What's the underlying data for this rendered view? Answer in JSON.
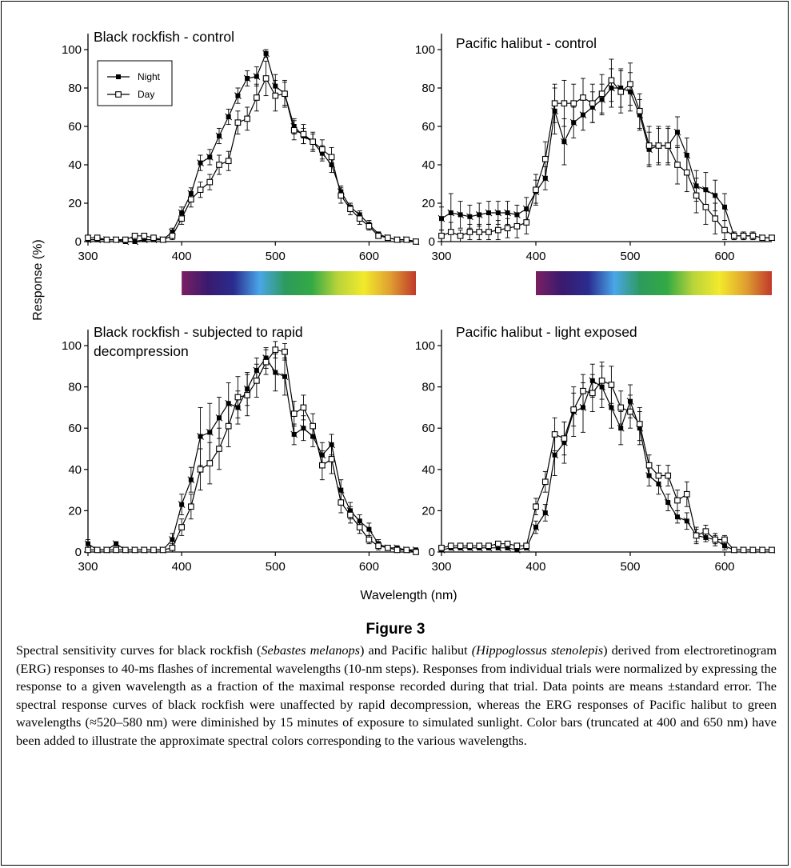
{
  "figure": {
    "title": "Figure 3",
    "ylabel": "Response (%)",
    "xlabel": "Wavelength (nm)"
  },
  "caption": {
    "t1": "Spectral sensitivity curves for black rockfish (",
    "sp1": "Sebastes melanops",
    "t2": ") and Pacific halibut ",
    "sp2": "(Hippoglossus stenolepis",
    "t3": ") derived from electroretinogram (ERG) responses to 40-ms flashes of incremental wavelengths (10-nm steps). Responses from individual trials were normalized by expressing the response to a given wavelength as a fraction of the maximal response recorded during that trial. Data points are means ±standard error. The spectral response curves of black rockfish were unaffected by rapid decompression, whereas the ERG responses of Pacific halibut to green wavelengths (≈520–580 nm) were diminished by 15 minutes of exposure to simulated sunlight. Color bars (truncated at 400 and 650 nm) have been added to illustrate the approximate spectral colors corresponding to the various wavelengths."
  },
  "legend": [
    "Night",
    "Day"
  ],
  "colors": {
    "spectrum": [
      "#7a1f63",
      "#3a1a6e",
      "#2a2c8f",
      "#4aa6e8",
      "#2d9a5c",
      "#33aa44",
      "#b9d43a",
      "#f2ea2c",
      "#e0a030",
      "#c0392b"
    ]
  },
  "chart_data": [
    {
      "type": "line",
      "title": "Black rockfish - control",
      "xlim": [
        300,
        650
      ],
      "ylim": [
        0,
        100
      ],
      "xticks": [
        300,
        400,
        500,
        600
      ],
      "yticks": [
        0,
        20,
        40,
        60,
        80,
        100
      ],
      "x": [
        300,
        310,
        320,
        330,
        340,
        350,
        360,
        370,
        380,
        390,
        400,
        410,
        420,
        430,
        440,
        450,
        460,
        470,
        480,
        490,
        500,
        510,
        520,
        530,
        540,
        550,
        560,
        570,
        580,
        590,
        600,
        610,
        620,
        630,
        640,
        650
      ],
      "series": [
        {
          "name": "Night",
          "values": [
            1,
            1,
            1,
            1,
            0,
            0,
            1,
            1,
            1,
            5,
            15,
            25,
            41,
            44,
            55,
            65,
            76,
            85,
            86,
            98,
            81,
            77,
            60,
            55,
            52,
            46,
            40,
            26,
            18,
            14,
            9,
            4,
            2,
            1,
            1,
            0
          ],
          "err": [
            1,
            1,
            1,
            1,
            1,
            1,
            1,
            1,
            1,
            2,
            3,
            3,
            4,
            4,
            4,
            4,
            4,
            4,
            5,
            2,
            6,
            6,
            4,
            4,
            4,
            4,
            4,
            3,
            2,
            2,
            2,
            1,
            1,
            1,
            1,
            1
          ]
        },
        {
          "name": "Day",
          "values": [
            2,
            2,
            1,
            1,
            1,
            3,
            3,
            2,
            1,
            3,
            12,
            22,
            27,
            31,
            40,
            42,
            62,
            64,
            75,
            85,
            76,
            77,
            58,
            56,
            52,
            48,
            44,
            24,
            17,
            12,
            8,
            3,
            2,
            1,
            1,
            0
          ],
          "err": [
            1,
            1,
            1,
            1,
            1,
            1,
            1,
            1,
            1,
            2,
            3,
            4,
            4,
            4,
            5,
            5,
            6,
            6,
            7,
            9,
            8,
            7,
            5,
            5,
            5,
            5,
            5,
            4,
            3,
            3,
            2,
            1,
            1,
            1,
            1,
            1
          ]
        }
      ]
    },
    {
      "type": "line",
      "title": "Pacific halibut - control",
      "xlim": [
        300,
        650
      ],
      "ylim": [
        0,
        100
      ],
      "xticks": [
        300,
        400,
        500,
        600
      ],
      "yticks": [
        0,
        20,
        40,
        60,
        80,
        100
      ],
      "x": [
        300,
        310,
        320,
        330,
        340,
        350,
        360,
        370,
        380,
        390,
        400,
        410,
        420,
        430,
        440,
        450,
        460,
        470,
        480,
        490,
        500,
        510,
        520,
        530,
        540,
        550,
        560,
        570,
        580,
        590,
        600,
        610,
        620,
        630,
        640,
        650
      ],
      "series": [
        {
          "name": "Night",
          "values": [
            12,
            15,
            14,
            13,
            14,
            15,
            15,
            15,
            14,
            17,
            26,
            33,
            68,
            52,
            62,
            66,
            70,
            74,
            80,
            80,
            78,
            66,
            48,
            50,
            50,
            57,
            45,
            29,
            27,
            24,
            18,
            3,
            3,
            3,
            2,
            2
          ],
          "err": [
            6,
            10,
            7,
            6,
            6,
            6,
            6,
            6,
            5,
            6,
            6,
            6,
            12,
            12,
            8,
            8,
            8,
            8,
            10,
            10,
            10,
            8,
            9,
            9,
            9,
            8,
            9,
            8,
            9,
            8,
            7,
            2,
            2,
            2,
            1,
            1
          ]
        },
        {
          "name": "Day",
          "values": [
            3,
            5,
            3,
            5,
            5,
            5,
            6,
            7,
            8,
            10,
            27,
            43,
            72,
            72,
            72,
            75,
            72,
            77,
            84,
            78,
            82,
            68,
            50,
            50,
            50,
            40,
            36,
            24,
            18,
            12,
            6,
            3,
            3,
            3,
            2,
            2
          ],
          "err": [
            3,
            5,
            3,
            4,
            4,
            4,
            5,
            5,
            6,
            6,
            8,
            9,
            10,
            12,
            10,
            10,
            10,
            10,
            11,
            11,
            11,
            9,
            10,
            10,
            10,
            10,
            10,
            9,
            9,
            8,
            5,
            2,
            2,
            2,
            1,
            1
          ]
        }
      ]
    },
    {
      "type": "line",
      "title": "Black rockfish - subjected to rapid decompression",
      "xlim": [
        300,
        650
      ],
      "ylim": [
        0,
        100
      ],
      "xticks": [
        300,
        400,
        500,
        600
      ],
      "yticks": [
        0,
        20,
        40,
        60,
        80,
        100
      ],
      "x": [
        300,
        310,
        320,
        330,
        340,
        350,
        360,
        370,
        380,
        390,
        400,
        410,
        420,
        430,
        440,
        450,
        460,
        470,
        480,
        490,
        500,
        510,
        520,
        530,
        540,
        550,
        560,
        570,
        580,
        590,
        600,
        610,
        620,
        630,
        640,
        650
      ],
      "series": [
        {
          "name": "Night",
          "values": [
            4,
            1,
            1,
            4,
            1,
            1,
            1,
            1,
            1,
            6,
            23,
            35,
            56,
            58,
            65,
            72,
            70,
            79,
            88,
            94,
            87,
            85,
            57,
            60,
            56,
            47,
            52,
            30,
            20,
            15,
            11,
            4,
            2,
            2,
            1,
            1
          ],
          "err": [
            2,
            1,
            1,
            1,
            1,
            1,
            1,
            1,
            1,
            3,
            5,
            6,
            14,
            14,
            10,
            10,
            8,
            8,
            6,
            5,
            9,
            9,
            5,
            6,
            5,
            6,
            5,
            5,
            4,
            3,
            3,
            2,
            1,
            1,
            1,
            1
          ]
        },
        {
          "name": "Day",
          "values": [
            1,
            1,
            1,
            1,
            1,
            1,
            1,
            1,
            1,
            2,
            12,
            22,
            40,
            43,
            50,
            61,
            75,
            76,
            83,
            92,
            98,
            97,
            67,
            70,
            61,
            42,
            45,
            24,
            18,
            12,
            6,
            3,
            2,
            1,
            1,
            0
          ],
          "err": [
            1,
            1,
            1,
            1,
            1,
            1,
            1,
            1,
            1,
            2,
            4,
            6,
            10,
            10,
            10,
            10,
            10,
            10,
            8,
            6,
            4,
            4,
            6,
            6,
            6,
            7,
            7,
            5,
            4,
            3,
            2,
            2,
            1,
            1,
            1,
            1
          ]
        }
      ]
    },
    {
      "type": "line",
      "title": "Pacific halibut - light exposed",
      "xlim": [
        300,
        650
      ],
      "ylim": [
        0,
        100
      ],
      "xticks": [
        300,
        400,
        500,
        600
      ],
      "yticks": [
        0,
        20,
        40,
        60,
        80,
        100
      ],
      "x": [
        300,
        310,
        320,
        330,
        340,
        350,
        360,
        370,
        380,
        390,
        400,
        410,
        420,
        430,
        440,
        450,
        460,
        470,
        480,
        490,
        500,
        510,
        520,
        530,
        540,
        550,
        560,
        570,
        580,
        590,
        600,
        610,
        620,
        630,
        640,
        650
      ],
      "series": [
        {
          "name": "Night",
          "values": [
            1,
            2,
            2,
            2,
            2,
            2,
            2,
            2,
            1,
            2,
            12,
            19,
            47,
            53,
            68,
            70,
            83,
            80,
            70,
            60,
            73,
            60,
            37,
            33,
            24,
            17,
            15,
            8,
            7,
            6,
            3,
            1,
            1,
            1,
            1,
            1
          ],
          "err": [
            1,
            1,
            1,
            1,
            1,
            1,
            1,
            1,
            1,
            1,
            3,
            4,
            10,
            10,
            12,
            12,
            8,
            10,
            10,
            8,
            8,
            8,
            5,
            5,
            4,
            3,
            4,
            3,
            2,
            2,
            2,
            1,
            1,
            1,
            1,
            1
          ]
        },
        {
          "name": "Day",
          "values": [
            2,
            3,
            3,
            3,
            3,
            3,
            4,
            4,
            3,
            3,
            22,
            34,
            57,
            55,
            69,
            78,
            77,
            83,
            81,
            70,
            68,
            62,
            42,
            37,
            37,
            25,
            28,
            8,
            10,
            6,
            6,
            1,
            1,
            1,
            1,
            1
          ],
          "err": [
            1,
            1,
            1,
            1,
            1,
            1,
            1,
            1,
            1,
            1,
            4,
            5,
            8,
            8,
            8,
            8,
            9,
            9,
            9,
            8,
            8,
            8,
            5,
            5,
            5,
            5,
            6,
            4,
            3,
            3,
            2,
            1,
            1,
            1,
            1,
            1
          ]
        }
      ]
    }
  ]
}
